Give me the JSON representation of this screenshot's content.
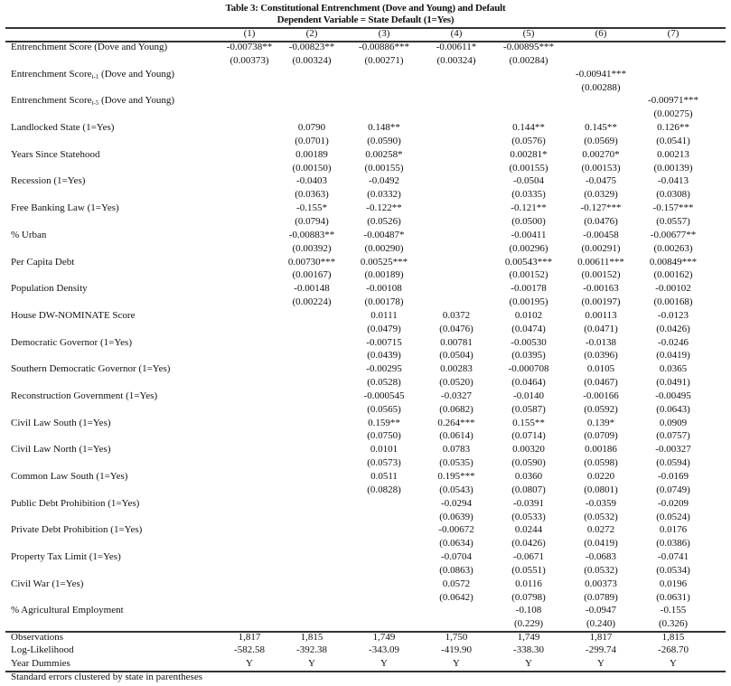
{
  "title": "Table 3: Constitutional Entrenchment (Dove and Young) and Default",
  "subtitle": "Dependent Variable = State Default (1=Yes)",
  "columns": [
    "(1)",
    "(2)",
    "(3)",
    "(4)",
    "(5)",
    "(6)",
    "(7)"
  ],
  "rows": [
    {
      "label": "Entrenchment Score",
      "sub": "",
      "suffix": " (Dove and Young)",
      "coef": [
        "-0.00738**",
        "-0.00823**",
        "-0.00886***",
        "-0.00611*",
        "-0.00895***",
        "",
        ""
      ],
      "se": [
        "(0.00373)",
        "(0.00324)",
        "(0.00271)",
        "(0.00324)",
        "(0.00284)",
        "",
        ""
      ]
    },
    {
      "label": "Entrenchment Score",
      "sub": "t-1",
      "suffix": " (Dove and Young)",
      "coef": [
        "",
        "",
        "",
        "",
        "",
        "-0.00941***",
        ""
      ],
      "se": [
        "",
        "",
        "",
        "",
        "",
        "(0.00288)",
        ""
      ]
    },
    {
      "label": "Entrenchment Score",
      "sub": "t-5",
      "suffix": " (Dove and Young)",
      "coef": [
        "",
        "",
        "",
        "",
        "",
        "",
        "-0.00971***"
      ],
      "se": [
        "",
        "",
        "",
        "",
        "",
        "",
        "(0.00275)"
      ]
    },
    {
      "label": "Landlocked State (1=Yes)",
      "sub": "",
      "suffix": "",
      "coef": [
        "",
        "0.0790",
        "0.148**",
        "",
        "0.144**",
        "0.145**",
        "0.126**"
      ],
      "se": [
        "",
        "(0.0701)",
        "(0.0590)",
        "",
        "(0.0576)",
        "(0.0569)",
        "(0.0541)"
      ]
    },
    {
      "label": "Years Since Statehood",
      "sub": "",
      "suffix": "",
      "coef": [
        "",
        "0.00189",
        "0.00258*",
        "",
        "0.00281*",
        "0.00270*",
        "0.00213"
      ],
      "se": [
        "",
        "(0.00150)",
        "(0.00155)",
        "",
        "(0.00155)",
        "(0.00153)",
        "(0.00139)"
      ]
    },
    {
      "label": "Recession (1=Yes)",
      "sub": "",
      "suffix": "",
      "coef": [
        "",
        "-0.0403",
        "-0.0492",
        "",
        "-0.0504",
        "-0.0475",
        "-0.0413"
      ],
      "se": [
        "",
        "(0.0363)",
        "(0.0332)",
        "",
        "(0.0335)",
        "(0.0329)",
        "(0.0308)"
      ]
    },
    {
      "label": "Free Banking Law (1=Yes)",
      "sub": "",
      "suffix": "",
      "coef": [
        "",
        "-0.155*",
        "-0.122**",
        "",
        "-0.121**",
        "-0.127***",
        "-0.157***"
      ],
      "se": [
        "",
        "(0.0794)",
        "(0.0526)",
        "",
        "(0.0500)",
        "(0.0476)",
        "(0.0557)"
      ]
    },
    {
      "label": "% Urban",
      "sub": "",
      "suffix": "",
      "coef": [
        "",
        "-0.00883**",
        "-0.00487*",
        "",
        "-0.00411",
        "-0.00458",
        "-0.00677**"
      ],
      "se": [
        "",
        "(0.00392)",
        "(0.00290)",
        "",
        "(0.00296)",
        "(0.00291)",
        "(0.00263)"
      ]
    },
    {
      "label": "Per Capita Debt",
      "sub": "",
      "suffix": "",
      "coef": [
        "",
        "0.00730***",
        "0.00525***",
        "",
        "0.00543***",
        "0.00611***",
        "0.00849***"
      ],
      "se": [
        "",
        "(0.00167)",
        "(0.00189)",
        "",
        "(0.00152)",
        "(0.00152)",
        "(0.00162)"
      ]
    },
    {
      "label": "Population Density",
      "sub": "",
      "suffix": "",
      "coef": [
        "",
        "-0.00148",
        "-0.00108",
        "",
        "-0.00178",
        "-0.00163",
        "-0.00102"
      ],
      "se": [
        "",
        "(0.00224)",
        "(0.00178)",
        "",
        "(0.00195)",
        "(0.00197)",
        "(0.00168)"
      ]
    },
    {
      "label": "House DW-NOMINATE Score",
      "sub": "",
      "suffix": "",
      "coef": [
        "",
        "",
        "0.0111",
        "0.0372",
        "0.0102",
        "0.00113",
        "-0.0123"
      ],
      "se": [
        "",
        "",
        "(0.0479)",
        "(0.0476)",
        "(0.0474)",
        "(0.0471)",
        "(0.0426)"
      ]
    },
    {
      "label": "Democratic Governor (1=Yes)",
      "sub": "",
      "suffix": "",
      "coef": [
        "",
        "",
        "-0.00715",
        "0.00781",
        "-0.00530",
        "-0.0138",
        "-0.0246"
      ],
      "se": [
        "",
        "",
        "(0.0439)",
        "(0.0504)",
        "(0.0395)",
        "(0.0396)",
        "(0.0419)"
      ]
    },
    {
      "label": "Southern Democratic Governor (1=Yes)",
      "sub": "",
      "suffix": "",
      "coef": [
        "",
        "",
        "-0.00295",
        "0.00283",
        "-0.000708",
        "0.0105",
        "0.0365"
      ],
      "se": [
        "",
        "",
        "(0.0528)",
        "(0.0520)",
        "(0.0464)",
        "(0.0467)",
        "(0.0491)"
      ]
    },
    {
      "label": "Reconstruction Government (1=Yes)",
      "sub": "",
      "suffix": "",
      "coef": [
        "",
        "",
        "-0.000545",
        "-0.0327",
        "-0.0140",
        "-0.00166",
        "-0.00495"
      ],
      "se": [
        "",
        "",
        "(0.0565)",
        "(0.0682)",
        "(0.0587)",
        "(0.0592)",
        "(0.0643)"
      ]
    },
    {
      "label": "Civil Law South (1=Yes)",
      "sub": "",
      "suffix": "",
      "coef": [
        "",
        "",
        "0.159**",
        "0.264***",
        "0.155**",
        "0.139*",
        "0.0909"
      ],
      "se": [
        "",
        "",
        "(0.0750)",
        "(0.0614)",
        "(0.0714)",
        "(0.0709)",
        "(0.0757)"
      ]
    },
    {
      "label": "Civil Law North (1=Yes)",
      "sub": "",
      "suffix": "",
      "coef": [
        "",
        "",
        "0.0101",
        "0.0783",
        "0.00320",
        "0.00186",
        "-0.00327"
      ],
      "se": [
        "",
        "",
        "(0.0573)",
        "(0.0535)",
        "(0.0590)",
        "(0.0598)",
        "(0.0594)"
      ]
    },
    {
      "label": "Common Law South (1=Yes)",
      "sub": "",
      "suffix": "",
      "coef": [
        "",
        "",
        "0.0511",
        "0.195***",
        "0.0360",
        "0.0220",
        "-0.0169"
      ],
      "se": [
        "",
        "",
        "(0.0828)",
        "(0.0543)",
        "(0.0807)",
        "(0.0801)",
        "(0.0749)"
      ]
    },
    {
      "label": "Public Debt Prohibition (1=Yes)",
      "sub": "",
      "suffix": "",
      "coef": [
        "",
        "",
        "",
        "-0.0294",
        "-0.0391",
        "-0.0359",
        "-0.0209"
      ],
      "se": [
        "",
        "",
        "",
        "(0.0639)",
        "(0.0533)",
        "(0.0532)",
        "(0.0524)"
      ]
    },
    {
      "label": "Private Debt Prohibition (1=Yes)",
      "sub": "",
      "suffix": "",
      "coef": [
        "",
        "",
        "",
        "-0.00672",
        "0.0244",
        "0.0272",
        "0.0176"
      ],
      "se": [
        "",
        "",
        "",
        "(0.0634)",
        "(0.0426)",
        "(0.0419)",
        "(0.0386)"
      ]
    },
    {
      "label": "Property Tax Limit (1=Yes)",
      "sub": "",
      "suffix": "",
      "coef": [
        "",
        "",
        "",
        "-0.0704",
        "-0.0671",
        "-0.0683",
        "-0.0741"
      ],
      "se": [
        "",
        "",
        "",
        "(0.0863)",
        "(0.0551)",
        "(0.0532)",
        "(0.0534)"
      ]
    },
    {
      "label": "Civil War (1=Yes)",
      "sub": "",
      "suffix": "",
      "coef": [
        "",
        "",
        "",
        "0.0572",
        "0.0116",
        "0.00373",
        "0.0196"
      ],
      "se": [
        "",
        "",
        "",
        "(0.0642)",
        "(0.0798)",
        "(0.0789)",
        "(0.0631)"
      ]
    },
    {
      "label": "% Agricultural Employment",
      "sub": "",
      "suffix": "",
      "coef": [
        "",
        "",
        "",
        "",
        "-0.108",
        "-0.0947",
        "-0.155"
      ],
      "se": [
        "",
        "",
        "",
        "",
        "(0.229)",
        "(0.240)",
        "(0.326)"
      ]
    }
  ],
  "stats": [
    {
      "label": "Observations",
      "values": [
        "1,817",
        "1,815",
        "1,749",
        "1,750",
        "1,749",
        "1,817",
        "1,815"
      ]
    },
    {
      "label": "Log-Likelihood",
      "values": [
        "-582.58",
        "-392.38",
        "-343.09",
        "-419.90",
        "-338.30",
        "-299.74",
        "-268.70"
      ]
    },
    {
      "label": "Year Dummies",
      "values": [
        "Y",
        "Y",
        "Y",
        "Y",
        "Y",
        "Y",
        "Y"
      ]
    }
  ],
  "note": "Standard errors clustered by state in parentheses"
}
